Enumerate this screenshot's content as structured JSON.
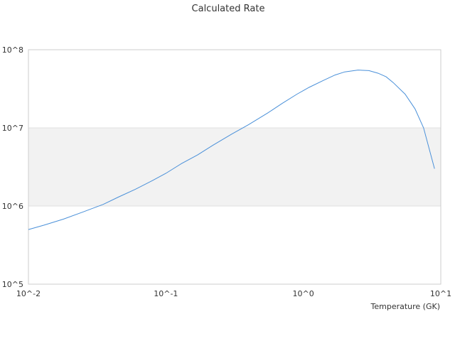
{
  "chart_data": {
    "type": "line",
    "title": "Calculated Rate",
    "xlabel": "Temperature (GK)",
    "ylabel": "",
    "xscale": "log",
    "yscale": "log",
    "xlim": [
      0.01,
      10
    ],
    "ylim": [
      100000,
      100000000
    ],
    "x_ticks": [
      {
        "value": 0.01,
        "label": "10^-2"
      },
      {
        "value": 0.1,
        "label": "10^-1"
      },
      {
        "value": 1,
        "label": "10^0"
      },
      {
        "value": 10,
        "label": "10^1"
      }
    ],
    "y_ticks": [
      {
        "value": 100000,
        "label": "10^5"
      },
      {
        "value": 1000000,
        "label": "10^6"
      },
      {
        "value": 10000000,
        "label": "10^7"
      },
      {
        "value": 100000000,
        "label": "10^8"
      }
    ],
    "grid": true,
    "band_colors": [
      "#ffffff",
      "#f2f2f2",
      "#ffffff"
    ],
    "series": [
      {
        "color": "#4a90d9",
        "x": [
          0.01,
          0.013,
          0.018,
          0.025,
          0.035,
          0.045,
          0.06,
          0.08,
          0.1,
          0.13,
          0.17,
          0.22,
          0.3,
          0.4,
          0.55,
          0.7,
          0.9,
          1.1,
          1.4,
          1.7,
          2.0,
          2.5,
          3.0,
          3.5,
          4.0,
          4.5,
          5.5,
          6.5,
          7.5,
          9.0
        ],
        "y": [
          500000,
          570000,
          680000,
          840000,
          1050000,
          1300000,
          1640000,
          2120000,
          2620000,
          3500000,
          4500000,
          6000000,
          8300000,
          11000000,
          15500000,
          20500000,
          27000000,
          33000000,
          40500000,
          47500000,
          52000000,
          55000000,
          54000000,
          50000000,
          45000000,
          38000000,
          27000000,
          17500000,
          10000000,
          3000000
        ]
      }
    ]
  }
}
